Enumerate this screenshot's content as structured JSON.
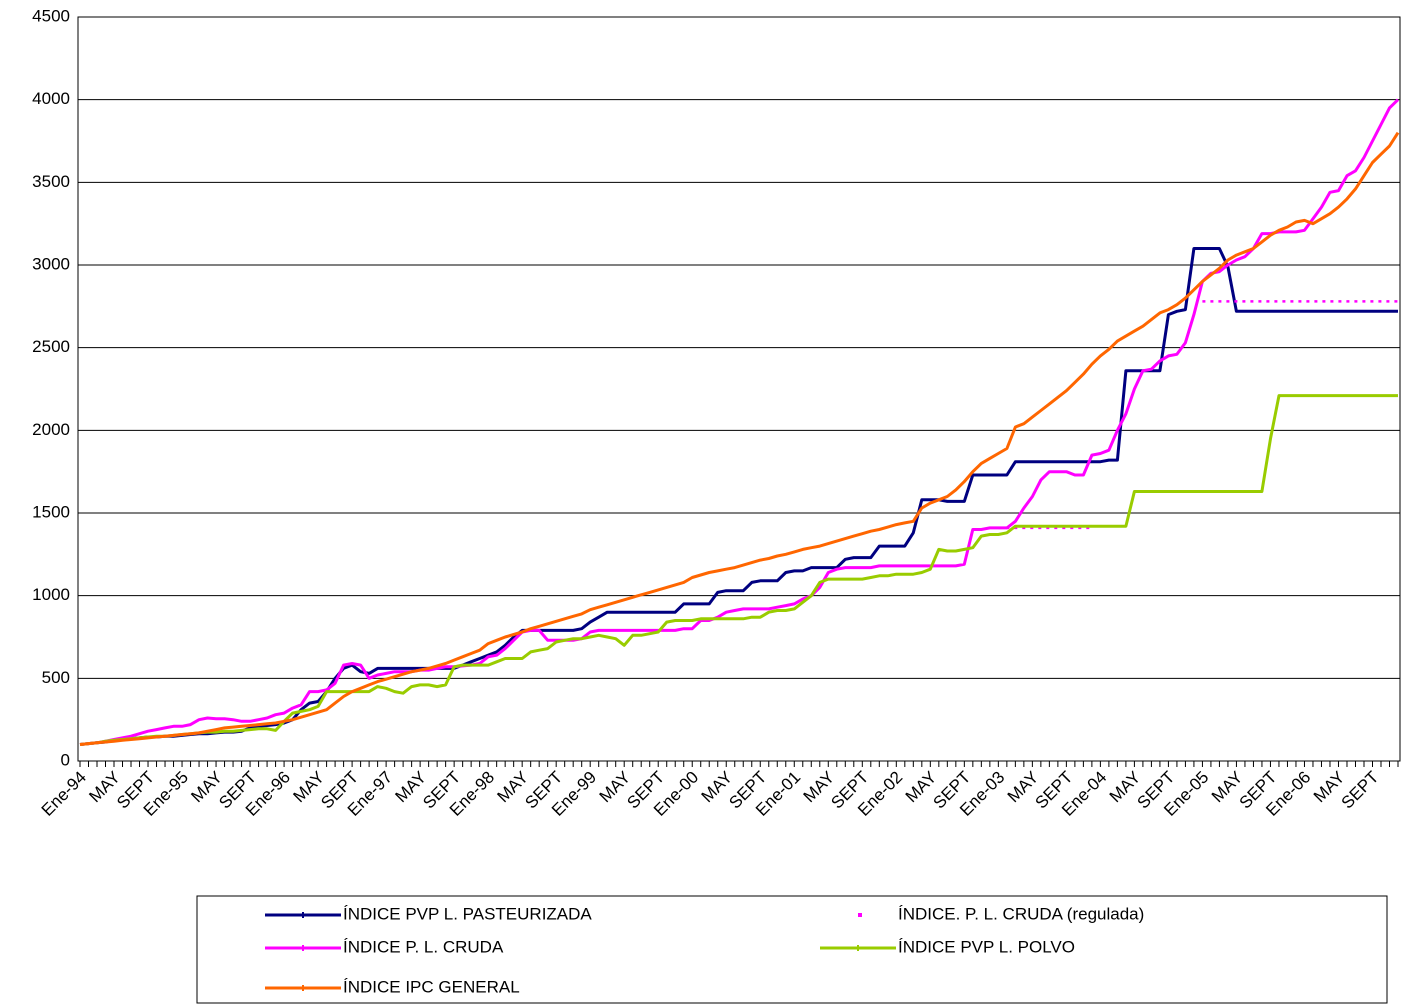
{
  "chart_data": {
    "type": "line",
    "categories": [
      "Ene-94",
      null,
      null,
      null,
      "MAY",
      null,
      null,
      null,
      "SEPT",
      null,
      null,
      null,
      "Ene-95",
      null,
      null,
      null,
      "MAY",
      null,
      null,
      null,
      "SEPT",
      null,
      null,
      null,
      "Ene-96",
      null,
      null,
      null,
      "MAY",
      null,
      null,
      null,
      "SEPT",
      null,
      null,
      null,
      "Ene-97",
      null,
      null,
      null,
      "MAY",
      null,
      null,
      null,
      "SEPT",
      null,
      null,
      null,
      "Ene-98",
      null,
      null,
      null,
      "MAY",
      null,
      null,
      null,
      "SEPT",
      null,
      null,
      null,
      "Ene-99",
      null,
      null,
      null,
      "MAY",
      null,
      null,
      null,
      "SEPT",
      null,
      null,
      null,
      "Ene-00",
      null,
      null,
      null,
      "MAY",
      null,
      null,
      null,
      "SEPT",
      null,
      null,
      null,
      "Ene-01",
      null,
      null,
      null,
      "MAY",
      null,
      null,
      null,
      "SEPT",
      null,
      null,
      null,
      "Ene-02",
      null,
      null,
      null,
      "MAY",
      null,
      null,
      null,
      "SEPT",
      null,
      null,
      null,
      "Ene-03",
      null,
      null,
      null,
      "MAY",
      null,
      null,
      null,
      "SEPT",
      null,
      null,
      null,
      "Ene-04",
      null,
      null,
      null,
      "MAY",
      null,
      null,
      null,
      "SEPT",
      null,
      null,
      null,
      "Ene-05",
      null,
      null,
      null,
      "MAY",
      null,
      null,
      null,
      "SEPT",
      null,
      null,
      null,
      "Ene-06",
      null,
      null,
      null,
      "MAY",
      null,
      null,
      null,
      "SEPT",
      null,
      null,
      null
    ],
    "ylim": [
      0,
      4500
    ],
    "yticks": [
      0,
      500,
      1000,
      1500,
      2000,
      2500,
      3000,
      3500,
      4000,
      4500
    ],
    "grid": true,
    "series": [
      {
        "name": "ÍNDICE PVP L. PASTEURIZADA",
        "color": "#000080",
        "style": "solid",
        "values": [
          100,
          105,
          110,
          115,
          125,
          130,
          135,
          140,
          145,
          145,
          150,
          150,
          155,
          160,
          165,
          165,
          170,
          175,
          175,
          180,
          200,
          210,
          215,
          220,
          230,
          250,
          310,
          350,
          360,
          420,
          500,
          560,
          580,
          540,
          530,
          560,
          560,
          560,
          560,
          560,
          560,
          560,
          560,
          560,
          560,
          580,
          600,
          620,
          640,
          660,
          700,
          750,
          790,
          790,
          790,
          790,
          790,
          790,
          790,
          800,
          840,
          870,
          900,
          900,
          900,
          900,
          900,
          900,
          900,
          900,
          900,
          950,
          950,
          950,
          950,
          1020,
          1030,
          1030,
          1030,
          1080,
          1090,
          1090,
          1090,
          1140,
          1150,
          1150,
          1170,
          1170,
          1170,
          1170,
          1220,
          1230,
          1230,
          1230,
          1300,
          1300,
          1300,
          1300,
          1380,
          1580,
          1580,
          1580,
          1570,
          1570,
          1570,
          1730,
          1730,
          1730,
          1730,
          1730,
          1810,
          1810,
          1810,
          1810,
          1810,
          1810,
          1810,
          1810,
          1810,
          1810,
          1810,
          1820,
          1820,
          2360,
          2360,
          2360,
          2360,
          2360,
          2700,
          2720,
          2730,
          3100,
          3100,
          3100,
          3100,
          2990,
          2720,
          2720,
          2720,
          2720,
          2720,
          2720,
          2720,
          2720,
          2720,
          2720,
          2720,
          2720,
          2720,
          2720,
          2720,
          2720,
          2720,
          2720,
          2720,
          2720
        ]
      },
      {
        "name": "ÍNDICE. P. L. CRUDA (regulada)",
        "color": "#ff00ff",
        "style": "dotted",
        "values": [
          null,
          null,
          null,
          null,
          null,
          null,
          null,
          null,
          null,
          null,
          null,
          null,
          null,
          null,
          null,
          null,
          null,
          null,
          null,
          null,
          null,
          null,
          null,
          null,
          null,
          null,
          null,
          null,
          null,
          null,
          null,
          null,
          null,
          null,
          null,
          null,
          null,
          null,
          null,
          null,
          null,
          null,
          null,
          null,
          null,
          null,
          null,
          null,
          null,
          null,
          null,
          null,
          null,
          null,
          null,
          null,
          null,
          null,
          null,
          null,
          null,
          null,
          null,
          null,
          null,
          null,
          null,
          null,
          null,
          null,
          null,
          null,
          null,
          null,
          null,
          null,
          null,
          null,
          null,
          null,
          null,
          null,
          null,
          null,
          null,
          null,
          null,
          null,
          null,
          null,
          null,
          null,
          null,
          null,
          null,
          null,
          null,
          null,
          null,
          null,
          null,
          null,
          null,
          null,
          null,
          null,
          null,
          null,
          1410,
          1410,
          1410,
          1410,
          1410,
          1410,
          1410,
          1410,
          1410,
          1410,
          1410,
          1410,
          null,
          null,
          null,
          null,
          null,
          null,
          null,
          null,
          null,
          null,
          null,
          null,
          2780,
          2780,
          2780,
          2780,
          2780,
          2780,
          2780,
          2780,
          2780,
          2780,
          2780,
          2780,
          2780,
          2780,
          2780,
          2780,
          2780,
          2780,
          2780,
          2780,
          2780,
          2780,
          2780,
          2780
        ]
      },
      {
        "name": "ÍNDICE P. L. CRUDA",
        "color": "#ff00ff",
        "style": "solid",
        "values": [
          100,
          105,
          110,
          120,
          130,
          140,
          150,
          165,
          180,
          190,
          200,
          210,
          210,
          220,
          250,
          260,
          255,
          255,
          250,
          240,
          240,
          250,
          260,
          280,
          290,
          320,
          340,
          420,
          420,
          430,
          470,
          580,
          590,
          580,
          500,
          520,
          530,
          540,
          540,
          540,
          550,
          550,
          560,
          570,
          570,
          575,
          580,
          590,
          630,
          640,
          680,
          730,
          780,
          790,
          790,
          730,
          730,
          730,
          730,
          740,
          780,
          790,
          790,
          790,
          790,
          790,
          790,
          790,
          790,
          790,
          790,
          800,
          800,
          850,
          850,
          870,
          900,
          910,
          920,
          920,
          920,
          920,
          930,
          940,
          950,
          980,
          1000,
          1050,
          1140,
          1160,
          1170,
          1170,
          1170,
          1170,
          1180,
          1180,
          1180,
          1180,
          1180,
          1180,
          1180,
          1180,
          1180,
          1180,
          1190,
          1400,
          1400,
          1410,
          1410,
          1410,
          1450,
          1530,
          1600,
          1700,
          1750,
          1750,
          1750,
          1730,
          1730,
          1850,
          1860,
          1880,
          2000,
          2100,
          2250,
          2360,
          2370,
          2420,
          2450,
          2460,
          2530,
          2700,
          2900,
          2950,
          2960,
          3000,
          3030,
          3050,
          3100,
          3190,
          3190,
          3200,
          3200,
          3200,
          3210,
          3280,
          3350,
          3440,
          3450,
          3540,
          3570,
          3650,
          3750,
          3850,
          3950,
          4000
        ]
      },
      {
        "name": "ÍNDICE PVP L. POLVO",
        "color": "#99cc00",
        "style": "solid",
        "values": [
          100,
          105,
          110,
          120,
          125,
          130,
          135,
          140,
          145,
          150,
          150,
          155,
          160,
          165,
          170,
          175,
          175,
          180,
          180,
          185,
          190,
          195,
          195,
          185,
          240,
          290,
          300,
          310,
          330,
          420,
          420,
          420,
          420,
          420,
          420,
          450,
          440,
          420,
          410,
          450,
          460,
          460,
          450,
          460,
          570,
          580,
          580,
          580,
          580,
          600,
          620,
          620,
          620,
          660,
          670,
          680,
          720,
          730,
          740,
          740,
          750,
          760,
          750,
          740,
          700,
          760,
          760,
          770,
          780,
          840,
          850,
          850,
          850,
          860,
          860,
          860,
          860,
          860,
          860,
          870,
          870,
          900,
          910,
          910,
          920,
          960,
          1000,
          1080,
          1100,
          1100,
          1100,
          1100,
          1100,
          1110,
          1120,
          1120,
          1130,
          1130,
          1130,
          1140,
          1160,
          1280,
          1270,
          1270,
          1280,
          1290,
          1360,
          1370,
          1370,
          1380,
          1420,
          1420,
          1420,
          1420,
          1420,
          1420,
          1420,
          1420,
          1420,
          1420,
          1420,
          1420,
          1420,
          1420,
          1630,
          1630,
          1630,
          1630,
          1630,
          1630,
          1630,
          1630,
          1630,
          1630,
          1630,
          1630,
          1630,
          1630,
          1630,
          1630,
          1950,
          2210,
          2210,
          2210,
          2210,
          2210,
          2210,
          2210,
          2210,
          2210,
          2210,
          2210,
          2210,
          2210,
          2210,
          2210
        ]
      },
      {
        "name": "ÍNDICE IPC GENERAL",
        "color": "#ff6600",
        "style": "solid",
        "values": [
          100,
          105,
          110,
          115,
          120,
          125,
          130,
          135,
          140,
          145,
          150,
          155,
          160,
          165,
          170,
          180,
          190,
          200,
          205,
          210,
          215,
          220,
          225,
          230,
          240,
          250,
          265,
          280,
          295,
          310,
          350,
          390,
          420,
          440,
          460,
          480,
          495,
          510,
          525,
          540,
          550,
          560,
          575,
          590,
          610,
          630,
          650,
          670,
          710,
          730,
          750,
          765,
          780,
          800,
          815,
          830,
          845,
          860,
          875,
          890,
          915,
          930,
          945,
          960,
          975,
          990,
          1005,
          1020,
          1035,
          1050,
          1065,
          1080,
          1110,
          1125,
          1140,
          1150,
          1160,
          1170,
          1185,
          1200,
          1215,
          1225,
          1240,
          1250,
          1265,
          1280,
          1290,
          1300,
          1315,
          1330,
          1345,
          1360,
          1375,
          1390,
          1400,
          1415,
          1430,
          1440,
          1450,
          1530,
          1560,
          1580,
          1600,
          1640,
          1690,
          1750,
          1800,
          1830,
          1860,
          1890,
          2020,
          2040,
          2080,
          2120,
          2160,
          2200,
          2240,
          2290,
          2340,
          2400,
          2450,
          2490,
          2540,
          2570,
          2600,
          2630,
          2670,
          2710,
          2730,
          2760,
          2800,
          2850,
          2900,
          2940,
          2980,
          3030,
          3060,
          3080,
          3100,
          3140,
          3180,
          3210,
          3230,
          3260,
          3270,
          3250,
          3280,
          3310,
          3350,
          3400,
          3460,
          3540,
          3620,
          3670,
          3720,
          3800
        ]
      }
    ]
  }
}
